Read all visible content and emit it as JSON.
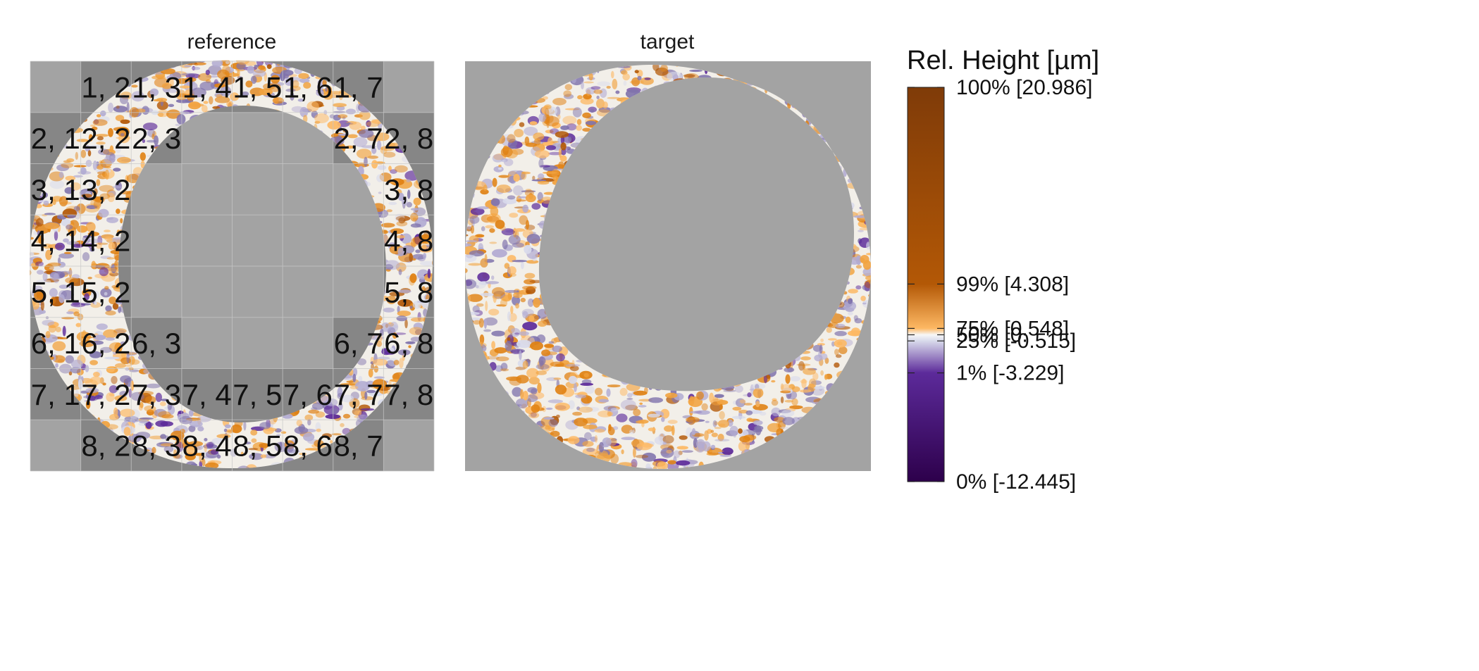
{
  "chart_data": {
    "type": "heatmap",
    "panels": [
      {
        "title": "reference",
        "grid": {
          "rows": 8,
          "cols": 8,
          "cells": [
            {
              "label": "1, 2",
              "row": 1,
              "col": 2
            },
            {
              "label": "1, 3",
              "row": 1,
              "col": 3
            },
            {
              "label": "1, 4",
              "row": 1,
              "col": 4
            },
            {
              "label": "1, 5",
              "row": 1,
              "col": 5
            },
            {
              "label": "1, 6",
              "row": 1,
              "col": 6
            },
            {
              "label": "1, 7",
              "row": 1,
              "col": 7
            },
            {
              "label": "2, 1",
              "row": 2,
              "col": 1
            },
            {
              "label": "2, 2",
              "row": 2,
              "col": 2
            },
            {
              "label": "2, 3",
              "row": 2,
              "col": 3
            },
            {
              "label": "2, 7",
              "row": 2,
              "col": 7
            },
            {
              "label": "2, 8",
              "row": 2,
              "col": 8
            },
            {
              "label": "3, 1",
              "row": 3,
              "col": 1
            },
            {
              "label": "3, 2",
              "row": 3,
              "col": 2
            },
            {
              "label": "3, 8",
              "row": 3,
              "col": 8
            },
            {
              "label": "4, 1",
              "row": 4,
              "col": 1
            },
            {
              "label": "4, 2",
              "row": 4,
              "col": 2
            },
            {
              "label": "4, 8",
              "row": 4,
              "col": 8
            },
            {
              "label": "5, 1",
              "row": 5,
              "col": 1
            },
            {
              "label": "5, 2",
              "row": 5,
              "col": 2
            },
            {
              "label": "5, 8",
              "row": 5,
              "col": 8
            },
            {
              "label": "6, 1",
              "row": 6,
              "col": 1
            },
            {
              "label": "6, 2",
              "row": 6,
              "col": 2
            },
            {
              "label": "6, 3",
              "row": 6,
              "col": 3
            },
            {
              "label": "6, 7",
              "row": 6,
              "col": 7
            },
            {
              "label": "6, 8",
              "row": 6,
              "col": 8
            },
            {
              "label": "7, 1",
              "row": 7,
              "col": 1
            },
            {
              "label": "7, 2",
              "row": 7,
              "col": 2
            },
            {
              "label": "7, 3",
              "row": 7,
              "col": 3
            },
            {
              "label": "7, 4",
              "row": 7,
              "col": 4
            },
            {
              "label": "7, 5",
              "row": 7,
              "col": 5
            },
            {
              "label": "7, 6",
              "row": 7,
              "col": 6
            },
            {
              "label": "7, 7",
              "row": 7,
              "col": 7
            },
            {
              "label": "7, 8",
              "row": 7,
              "col": 8
            },
            {
              "label": "8, 2",
              "row": 8,
              "col": 2
            },
            {
              "label": "8, 3",
              "row": 8,
              "col": 3
            },
            {
              "label": "8, 4",
              "row": 8,
              "col": 4
            },
            {
              "label": "8, 5",
              "row": 8,
              "col": 5
            },
            {
              "label": "8, 6",
              "row": 8,
              "col": 6
            },
            {
              "label": "8, 7",
              "row": 8,
              "col": 7
            }
          ]
        }
      },
      {
        "title": "target"
      }
    ],
    "colorbar": {
      "title": "Rel. Height [µm]",
      "range": [
        -12.445,
        20.986
      ],
      "ticks": [
        {
          "label": "100% [20.986]",
          "value": 20.986
        },
        {
          "label": "99% [4.308]",
          "value": 4.308
        },
        {
          "label": "75% [0.548]",
          "value": 0.548
        },
        {
          "label": "50% [0.",
          "value": 0.0
        },
        {
          "label": "25% [-0.515]",
          "value": -0.515
        },
        {
          "label": "1% [-3.229]",
          "value": -3.229
        },
        {
          "label": "0% [-12.445]",
          "value": -12.445
        }
      ],
      "stops": [
        {
          "value": -12.445,
          "color": "#2d004b"
        },
        {
          "value": -3.229,
          "color": "#5c2a9a"
        },
        {
          "value": -0.515,
          "color": "#d8daeb"
        },
        {
          "value": 0.0,
          "color": "#f7f7f7"
        },
        {
          "value": 0.548,
          "color": "#fdb863"
        },
        {
          "value": 4.308,
          "color": "#b35806"
        },
        {
          "value": 20.986,
          "color": "#7f3b08"
        }
      ]
    },
    "colors": {
      "background": "#a3a3a3",
      "cell_dark": "#868686",
      "cell_light": "#a6a6a6",
      "orange": "#e08214",
      "purple": "#6d4aa8",
      "white": "#f7f7f7"
    }
  }
}
